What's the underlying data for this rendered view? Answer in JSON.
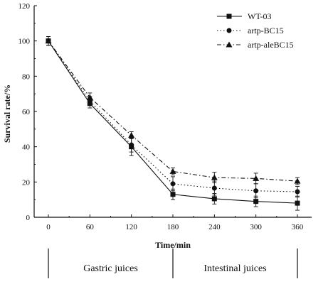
{
  "chart_data": {
    "type": "line",
    "xlabel": "Time/min",
    "ylabel": "Survival rate/%",
    "xlim": [
      0,
      360
    ],
    "ylim": [
      0,
      120
    ],
    "x": [
      0,
      60,
      120,
      180,
      240,
      300,
      360
    ],
    "x_ticks": [
      "0",
      "60",
      "120",
      "180",
      "240",
      "300",
      "360"
    ],
    "y_ticks": [
      "0",
      "20",
      "40",
      "60",
      "80",
      "100",
      "120"
    ],
    "grid": false,
    "legend_position": "top-right",
    "series": [
      {
        "name": "WT-03",
        "marker": "square",
        "line_style": "solid",
        "values": [
          100,
          64.5,
          40,
          13,
          10.5,
          9,
          8
        ],
        "errors": [
          2.5,
          2.5,
          5,
          3,
          3,
          3,
          4
        ]
      },
      {
        "name": "artp-BC15",
        "marker": "circle",
        "line_style": "dotted",
        "values": [
          100,
          66,
          41,
          19,
          16.5,
          15,
          14.5
        ],
        "errors": [
          2.5,
          2.5,
          4,
          4,
          4,
          4,
          3
        ]
      },
      {
        "name": "artp-aleBC15",
        "marker": "triangle",
        "line_style": "dashdot",
        "values": [
          100,
          68,
          46.5,
          26,
          22.5,
          22,
          20.5
        ],
        "errors": [
          2.5,
          2.5,
          2,
          2,
          3,
          3,
          2
        ]
      }
    ],
    "phases": [
      {
        "label": "Gastric juices",
        "x_start": 0,
        "x_end": 180
      },
      {
        "label": "Intestinal juices",
        "x_start": 180,
        "x_end": 360
      }
    ]
  }
}
